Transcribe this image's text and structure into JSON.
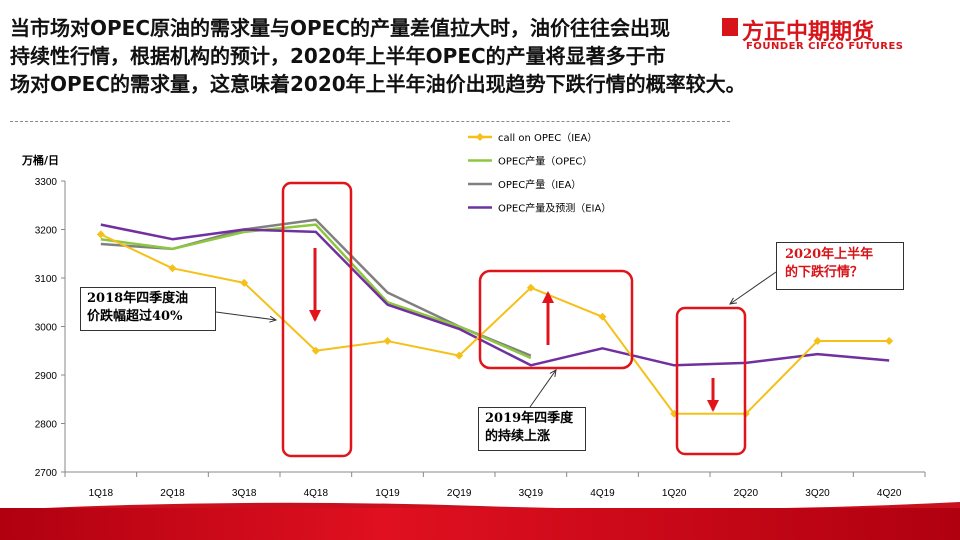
{
  "headline": {
    "line1": "当市场对OPEC原油的需求量与OPEC的产量差值拉大时，油价往往会出现",
    "line2": "持续性行情，根据机构的预计，2020年上半年OPEC的产量将显著多于市",
    "line3": "场对OPEC的需求量，这意味着2020年上半年油价出现趋势下跌行情的概率较大。"
  },
  "logo": {
    "cn": "方正中期期货",
    "en": "FOUNDER CIFCO FUTURES"
  },
  "colors": {
    "brand_red": "#d7141a",
    "call_on_opec": "#f5c018",
    "opec_opec": "#8dc63f",
    "opec_iea": "#808080",
    "opec_eia": "#7030a0"
  },
  "annotations": {
    "q4_2018": [
      "2018年四季度油",
      "价跌幅超过40%"
    ],
    "q4_2019": [
      "2019年四季度",
      "的持续上涨"
    ],
    "h1_2020": [
      "2020年上半年",
      "的下跌行情？"
    ]
  },
  "chart_data": {
    "type": "line",
    "ylabel": "万桶/日",
    "ylim": [
      2700,
      3300
    ],
    "yticks": [
      2700,
      2800,
      2900,
      3000,
      3100,
      3200,
      3300
    ],
    "categories": [
      "1Q18",
      "2Q18",
      "3Q18",
      "4Q18",
      "1Q19",
      "2Q19",
      "3Q19",
      "4Q19",
      "1Q20",
      "2Q20",
      "3Q20",
      "4Q20"
    ],
    "legend_position": "top-center",
    "series": [
      {
        "name": "call on OPEC（IEA）",
        "color": "#f5c018",
        "marker": "diamond",
        "values": [
          3190,
          3120,
          3090,
          2950,
          2970,
          2940,
          3080,
          3020,
          2820,
          2820,
          2970,
          2970
        ]
      },
      {
        "name": "OPEC产量（OPEC）",
        "color": "#8dc63f",
        "marker": "none",
        "values": [
          3180,
          3160,
          3195,
          3210,
          3050,
          3000,
          2935,
          null,
          null,
          null,
          null,
          null
        ]
      },
      {
        "name": "OPEC产量（IEA）",
        "color": "#808080",
        "marker": "none",
        "values": [
          3170,
          3160,
          3200,
          3220,
          3070,
          3000,
          2940,
          null,
          null,
          null,
          null,
          null
        ]
      },
      {
        "name": "OPEC产量及预测（EIA）",
        "color": "#7030a0",
        "marker": "none",
        "values": [
          3210,
          3180,
          3200,
          3195,
          3045,
          2995,
          2920,
          2955,
          2920,
          2925,
          2943,
          2930
        ]
      }
    ]
  }
}
